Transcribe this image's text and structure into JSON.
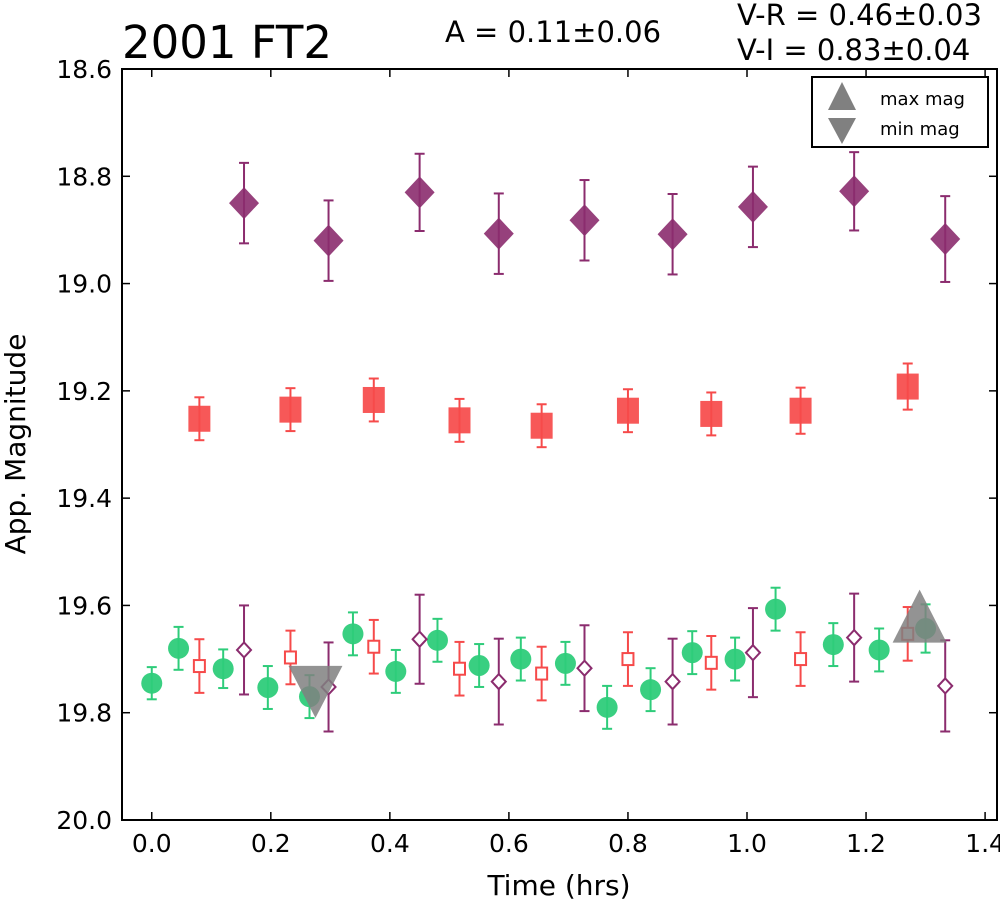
{
  "chart_data": {
    "type": "scatter",
    "title": "2001 FT2",
    "annotations": {
      "amplitude": "A  = 0.11±0.06",
      "v_r": "V-R = 0.46±0.03",
      "v_i": "V-I  = 0.83±0.04"
    },
    "xlabel": "Time (hrs)",
    "ylabel": "App. Magnitude",
    "xlim": [
      -0.05,
      1.42
    ],
    "ylim": [
      20.0,
      18.6
    ],
    "y_inverted": true,
    "xticks": [
      "0.0",
      "0.2",
      "0.4",
      "0.6",
      "0.8",
      "1.0",
      "1.2",
      "1.4"
    ],
    "yticks": [
      "18.6",
      "18.8",
      "19.0",
      "19.2",
      "19.4",
      "19.6",
      "19.8",
      "20.0"
    ],
    "legend": {
      "placement": "top-right",
      "entries": [
        {
          "label": "max mag",
          "marker": "triangle-up",
          "color": "#808080"
        },
        {
          "label": "min mag",
          "marker": "triangle-down",
          "color": "#808080"
        }
      ]
    },
    "series": [
      {
        "marker": "diamond-filled",
        "color": "#8b2c6e",
        "points": [
          [
            0.155,
            18.85,
            0.075
          ],
          [
            0.297,
            18.92,
            0.075
          ],
          [
            0.45,
            18.83,
            0.072
          ],
          [
            0.583,
            18.907,
            0.075
          ],
          [
            0.727,
            18.882,
            0.075
          ],
          [
            0.875,
            18.908,
            0.075
          ],
          [
            1.01,
            18.857,
            0.075
          ],
          [
            1.18,
            18.828,
            0.073
          ],
          [
            1.333,
            18.917,
            0.08
          ]
        ]
      },
      {
        "marker": "square-filled",
        "color": "#f64a4a",
        "points": [
          [
            0.08,
            19.252,
            0.04
          ],
          [
            0.233,
            19.235,
            0.04
          ],
          [
            0.373,
            19.217,
            0.04
          ],
          [
            0.517,
            19.255,
            0.04
          ],
          [
            0.655,
            19.265,
            0.04
          ],
          [
            0.8,
            19.237,
            0.04
          ],
          [
            0.94,
            19.243,
            0.04
          ],
          [
            1.09,
            19.237,
            0.043
          ],
          [
            1.27,
            19.192,
            0.043
          ]
        ]
      },
      {
        "marker": "circle-filled",
        "color": "#2ecc7a",
        "points": [
          [
            0.0,
            19.745,
            0.03
          ],
          [
            0.045,
            19.68,
            0.04
          ],
          [
            0.12,
            19.718,
            0.036
          ],
          [
            0.195,
            19.753,
            0.04
          ],
          [
            0.265,
            19.77,
            0.04
          ],
          [
            0.338,
            19.653,
            0.04
          ],
          [
            0.41,
            19.723,
            0.04
          ],
          [
            0.48,
            19.665,
            0.04
          ],
          [
            0.55,
            19.712,
            0.04
          ],
          [
            0.62,
            19.7,
            0.04
          ],
          [
            0.695,
            19.708,
            0.04
          ],
          [
            0.765,
            19.79,
            0.04
          ],
          [
            0.838,
            19.757,
            0.04
          ],
          [
            0.908,
            19.688,
            0.04
          ],
          [
            0.98,
            19.7,
            0.04
          ],
          [
            1.048,
            19.607,
            0.04
          ],
          [
            1.145,
            19.673,
            0.04
          ],
          [
            1.222,
            19.683,
            0.04
          ],
          [
            1.3,
            19.643,
            0.045
          ]
        ]
      },
      {
        "marker": "square-open",
        "color": "#f64a4a",
        "points": [
          [
            0.08,
            19.713,
            0.05
          ],
          [
            0.233,
            19.697,
            0.05
          ],
          [
            0.373,
            19.677,
            0.05
          ],
          [
            0.517,
            19.718,
            0.05
          ],
          [
            0.655,
            19.727,
            0.05
          ],
          [
            0.8,
            19.7,
            0.05
          ],
          [
            0.94,
            19.707,
            0.05
          ],
          [
            1.09,
            19.7,
            0.05
          ],
          [
            1.27,
            19.653,
            0.05
          ]
        ]
      },
      {
        "marker": "diamond-open",
        "color": "#8b2c6e",
        "points": [
          [
            0.155,
            19.683,
            0.083
          ],
          [
            0.297,
            19.752,
            0.083
          ],
          [
            0.45,
            19.663,
            0.083
          ],
          [
            0.583,
            19.742,
            0.08
          ],
          [
            0.727,
            19.717,
            0.08
          ],
          [
            0.875,
            19.742,
            0.08
          ],
          [
            1.01,
            19.688,
            0.083
          ],
          [
            1.18,
            19.66,
            0.082
          ],
          [
            1.333,
            19.75,
            0.085
          ]
        ]
      }
    ],
    "extrema": {
      "max_mag": {
        "x": 1.29,
        "y": 19.645
      },
      "min_mag": {
        "x": 0.275,
        "y": 19.75
      }
    }
  }
}
